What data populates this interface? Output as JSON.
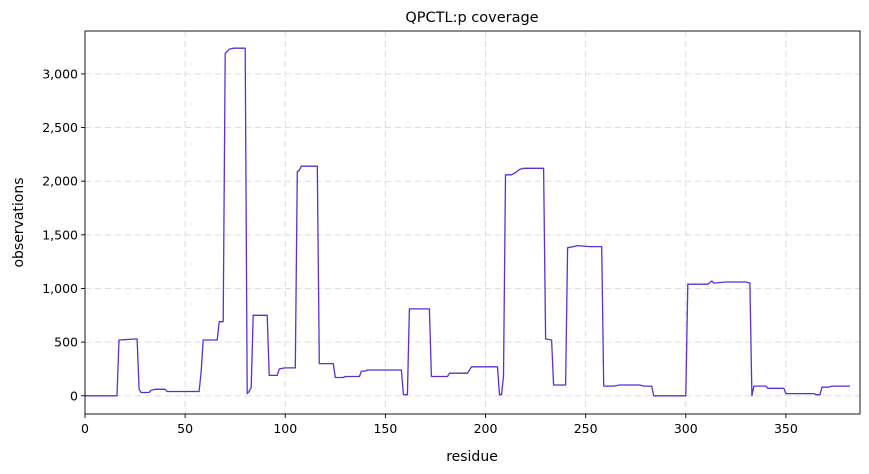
{
  "chart_data": {
    "type": "line",
    "title": "QPCTL:p coverage",
    "xlabel": "residue",
    "ylabel": "observations",
    "xlim": [
      0,
      387
    ],
    "ylim": [
      -170,
      3400
    ],
    "xticks": [
      0,
      50,
      100,
      150,
      200,
      250,
      300,
      350
    ],
    "yticks": [
      0,
      500,
      1000,
      1500,
      2000,
      2500,
      3000
    ],
    "xtick_labels": [
      "0",
      "50",
      "100",
      "150",
      "200",
      "250",
      "300",
      "350"
    ],
    "ytick_labels": [
      "0",
      "500",
      "1,000",
      "1,500",
      "2,000",
      "2,500",
      "3,000"
    ],
    "grid": true,
    "color": "#5b2fd6",
    "series": [
      {
        "points": [
          [
            0,
            0
          ],
          [
            16,
            0
          ],
          [
            17,
            520
          ],
          [
            26,
            530
          ],
          [
            27,
            60
          ],
          [
            28,
            30
          ],
          [
            32,
            30
          ],
          [
            33,
            50
          ],
          [
            35,
            60
          ],
          [
            40,
            60
          ],
          [
            41,
            40
          ],
          [
            45,
            40
          ],
          [
            57,
            40
          ],
          [
            58,
            220
          ],
          [
            59,
            520
          ],
          [
            66,
            520
          ],
          [
            67,
            690
          ],
          [
            69,
            690
          ],
          [
            70,
            3190
          ],
          [
            72,
            3230
          ],
          [
            74,
            3240
          ],
          [
            80,
            3240
          ],
          [
            81,
            20
          ],
          [
            82,
            40
          ],
          [
            83,
            80
          ],
          [
            84,
            750
          ],
          [
            91,
            750
          ],
          [
            92,
            190
          ],
          [
            96,
            190
          ],
          [
            97,
            250
          ],
          [
            100,
            260
          ],
          [
            102,
            260
          ],
          [
            105,
            260
          ],
          [
            106,
            2090
          ],
          [
            107,
            2100
          ],
          [
            108,
            2140
          ],
          [
            116,
            2140
          ],
          [
            117,
            300
          ],
          [
            124,
            300
          ],
          [
            125,
            170
          ],
          [
            129,
            170
          ],
          [
            130,
            180
          ],
          [
            137,
            180
          ],
          [
            138,
            230
          ],
          [
            140,
            230
          ],
          [
            141,
            240
          ],
          [
            158,
            240
          ],
          [
            159,
            10
          ],
          [
            161,
            10
          ],
          [
            162,
            810
          ],
          [
            172,
            810
          ],
          [
            173,
            180
          ],
          [
            181,
            180
          ],
          [
            182,
            210
          ],
          [
            191,
            210
          ],
          [
            192,
            240
          ],
          [
            193,
            270
          ],
          [
            206,
            270
          ],
          [
            207,
            10
          ],
          [
            208,
            10
          ],
          [
            209,
            180
          ],
          [
            210,
            2060
          ],
          [
            213,
            2060
          ],
          [
            215,
            2080
          ],
          [
            217,
            2110
          ],
          [
            219,
            2120
          ],
          [
            222,
            2120
          ],
          [
            229,
            2120
          ],
          [
            230,
            530
          ],
          [
            233,
            520
          ],
          [
            234,
            100
          ],
          [
            240,
            100
          ],
          [
            241,
            1380
          ],
          [
            244,
            1390
          ],
          [
            246,
            1400
          ],
          [
            252,
            1390
          ],
          [
            258,
            1390
          ],
          [
            259,
            90
          ],
          [
            264,
            90
          ],
          [
            267,
            100
          ],
          [
            277,
            100
          ],
          [
            279,
            90
          ],
          [
            283,
            90
          ],
          [
            284,
            0
          ],
          [
            300,
            0
          ],
          [
            301,
            1040
          ],
          [
            311,
            1040
          ],
          [
            313,
            1070
          ],
          [
            314,
            1050
          ],
          [
            320,
            1060
          ],
          [
            330,
            1060
          ],
          [
            332,
            1050
          ],
          [
            333,
            0
          ],
          [
            334,
            90
          ],
          [
            337,
            90
          ],
          [
            340,
            90
          ],
          [
            341,
            70
          ],
          [
            349,
            70
          ],
          [
            350,
            20
          ],
          [
            364,
            20
          ],
          [
            365,
            10
          ],
          [
            367,
            10
          ],
          [
            368,
            80
          ],
          [
            371,
            80
          ],
          [
            373,
            90
          ],
          [
            382,
            90
          ]
        ]
      }
    ]
  }
}
